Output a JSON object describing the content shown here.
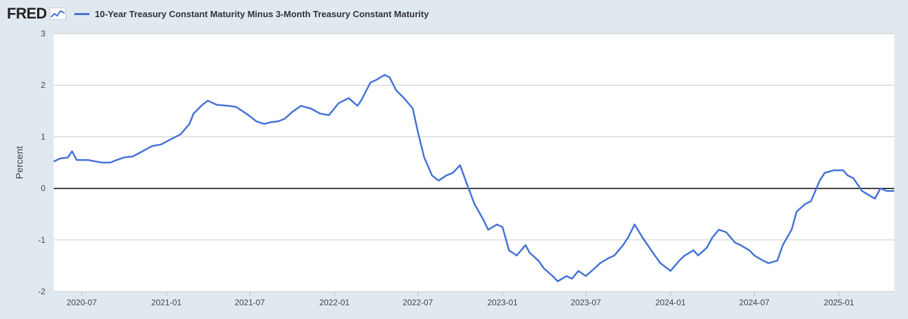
{
  "header": {
    "logo_text": "FRED",
    "logo_icon": "line-chart-icon"
  },
  "colors": {
    "series": "#4572d6",
    "background": "#e1e9f0",
    "plot": "#ffffff",
    "grid": "#cccccc",
    "zero_line": "#000000"
  },
  "chart_data": {
    "type": "line",
    "legend_position": "top-left",
    "ylabel": "Percent",
    "ylim": [
      -2,
      3
    ],
    "yticks": [
      -2,
      -1,
      0,
      1,
      2,
      3
    ],
    "xlim": [
      "2020-05-01",
      "2025-05-01"
    ],
    "xticks": [
      "2020-07",
      "2021-01",
      "2021-07",
      "2022-01",
      "2022-07",
      "2023-01",
      "2023-07",
      "2024-01",
      "2024-07",
      "2025-01"
    ],
    "grid": true,
    "series": [
      {
        "name": "10-Year Treasury Constant Maturity Minus 3-Month Treasury Constant Maturity",
        "points": [
          [
            "2020-05-01",
            0.52
          ],
          [
            "2020-05-15",
            0.58
          ],
          [
            "2020-06-01",
            0.6
          ],
          [
            "2020-06-10",
            0.72
          ],
          [
            "2020-06-20",
            0.55
          ],
          [
            "2020-07-15",
            0.55
          ],
          [
            "2020-08-01",
            0.52
          ],
          [
            "2020-08-15",
            0.5
          ],
          [
            "2020-09-01",
            0.5
          ],
          [
            "2020-09-15",
            0.55
          ],
          [
            "2020-10-01",
            0.6
          ],
          [
            "2020-10-20",
            0.62
          ],
          [
            "2020-11-10",
            0.72
          ],
          [
            "2020-12-01",
            0.82
          ],
          [
            "2020-12-20",
            0.85
          ],
          [
            "2021-01-10",
            0.95
          ],
          [
            "2021-02-01",
            1.05
          ],
          [
            "2021-02-20",
            1.25
          ],
          [
            "2021-03-01",
            1.45
          ],
          [
            "2021-03-20",
            1.62
          ],
          [
            "2021-04-01",
            1.7
          ],
          [
            "2021-04-20",
            1.62
          ],
          [
            "2021-05-15",
            1.6
          ],
          [
            "2021-06-01",
            1.58
          ],
          [
            "2021-06-15",
            1.5
          ],
          [
            "2021-07-01",
            1.4
          ],
          [
            "2021-07-15",
            1.3
          ],
          [
            "2021-08-01",
            1.25
          ],
          [
            "2021-08-15",
            1.28
          ],
          [
            "2021-09-01",
            1.3
          ],
          [
            "2021-09-15",
            1.35
          ],
          [
            "2021-10-01",
            1.48
          ],
          [
            "2021-10-20",
            1.6
          ],
          [
            "2021-11-10",
            1.55
          ],
          [
            "2021-12-01",
            1.45
          ],
          [
            "2021-12-20",
            1.42
          ],
          [
            "2022-01-10",
            1.65
          ],
          [
            "2022-02-01",
            1.75
          ],
          [
            "2022-02-20",
            1.6
          ],
          [
            "2022-03-01",
            1.72
          ],
          [
            "2022-03-20",
            2.05
          ],
          [
            "2022-04-01",
            2.1
          ],
          [
            "2022-04-20",
            2.2
          ],
          [
            "2022-05-01",
            2.15
          ],
          [
            "2022-05-15",
            1.9
          ],
          [
            "2022-06-01",
            1.75
          ],
          [
            "2022-06-20",
            1.55
          ],
          [
            "2022-07-01",
            1.1
          ],
          [
            "2022-07-15",
            0.6
          ],
          [
            "2022-08-01",
            0.25
          ],
          [
            "2022-08-15",
            0.15
          ],
          [
            "2022-09-01",
            0.25
          ],
          [
            "2022-09-15",
            0.3
          ],
          [
            "2022-10-01",
            0.45
          ],
          [
            "2022-10-15",
            0.1
          ],
          [
            "2022-11-01",
            -0.3
          ],
          [
            "2022-11-20",
            -0.6
          ],
          [
            "2022-12-01",
            -0.8
          ],
          [
            "2022-12-20",
            -0.7
          ],
          [
            "2023-01-01",
            -0.75
          ],
          [
            "2023-01-15",
            -1.2
          ],
          [
            "2023-02-01",
            -1.3
          ],
          [
            "2023-02-20",
            -1.1
          ],
          [
            "2023-03-01",
            -1.25
          ],
          [
            "2023-03-20",
            -1.4
          ],
          [
            "2023-04-01",
            -1.55
          ],
          [
            "2023-04-20",
            -1.7
          ],
          [
            "2023-05-01",
            -1.8
          ],
          [
            "2023-05-20",
            -1.7
          ],
          [
            "2023-06-01",
            -1.75
          ],
          [
            "2023-06-15",
            -1.6
          ],
          [
            "2023-07-01",
            -1.7
          ],
          [
            "2023-07-20",
            -1.55
          ],
          [
            "2023-08-01",
            -1.45
          ],
          [
            "2023-08-20",
            -1.35
          ],
          [
            "2023-09-01",
            -1.3
          ],
          [
            "2023-09-20",
            -1.1
          ],
          [
            "2023-10-01",
            -0.95
          ],
          [
            "2023-10-15",
            -0.7
          ],
          [
            "2023-11-01",
            -0.95
          ],
          [
            "2023-11-20",
            -1.2
          ],
          [
            "2023-12-10",
            -1.45
          ],
          [
            "2024-01-01",
            -1.6
          ],
          [
            "2024-01-20",
            -1.4
          ],
          [
            "2024-02-01",
            -1.3
          ],
          [
            "2024-02-20",
            -1.2
          ],
          [
            "2024-03-01",
            -1.3
          ],
          [
            "2024-03-20",
            -1.15
          ],
          [
            "2024-04-01",
            -0.95
          ],
          [
            "2024-04-15",
            -0.8
          ],
          [
            "2024-05-01",
            -0.85
          ],
          [
            "2024-05-20",
            -1.05
          ],
          [
            "2024-06-01",
            -1.1
          ],
          [
            "2024-06-20",
            -1.2
          ],
          [
            "2024-07-01",
            -1.3
          ],
          [
            "2024-07-20",
            -1.4
          ],
          [
            "2024-08-01",
            -1.45
          ],
          [
            "2024-08-20",
            -1.4
          ],
          [
            "2024-09-01",
            -1.1
          ],
          [
            "2024-09-20",
            -0.8
          ],
          [
            "2024-10-01",
            -0.45
          ],
          [
            "2024-10-20",
            -0.3
          ],
          [
            "2024-11-01",
            -0.25
          ],
          [
            "2024-11-20",
            0.15
          ],
          [
            "2024-12-01",
            0.3
          ],
          [
            "2024-12-20",
            0.35
          ],
          [
            "2025-01-10",
            0.35
          ],
          [
            "2025-01-20",
            0.25
          ],
          [
            "2025-02-01",
            0.2
          ],
          [
            "2025-02-20",
            -0.05
          ],
          [
            "2025-03-01",
            -0.1
          ],
          [
            "2025-03-20",
            -0.2
          ],
          [
            "2025-04-01",
            0.0
          ],
          [
            "2025-04-15",
            -0.05
          ],
          [
            "2025-05-01",
            -0.05
          ]
        ]
      }
    ]
  }
}
